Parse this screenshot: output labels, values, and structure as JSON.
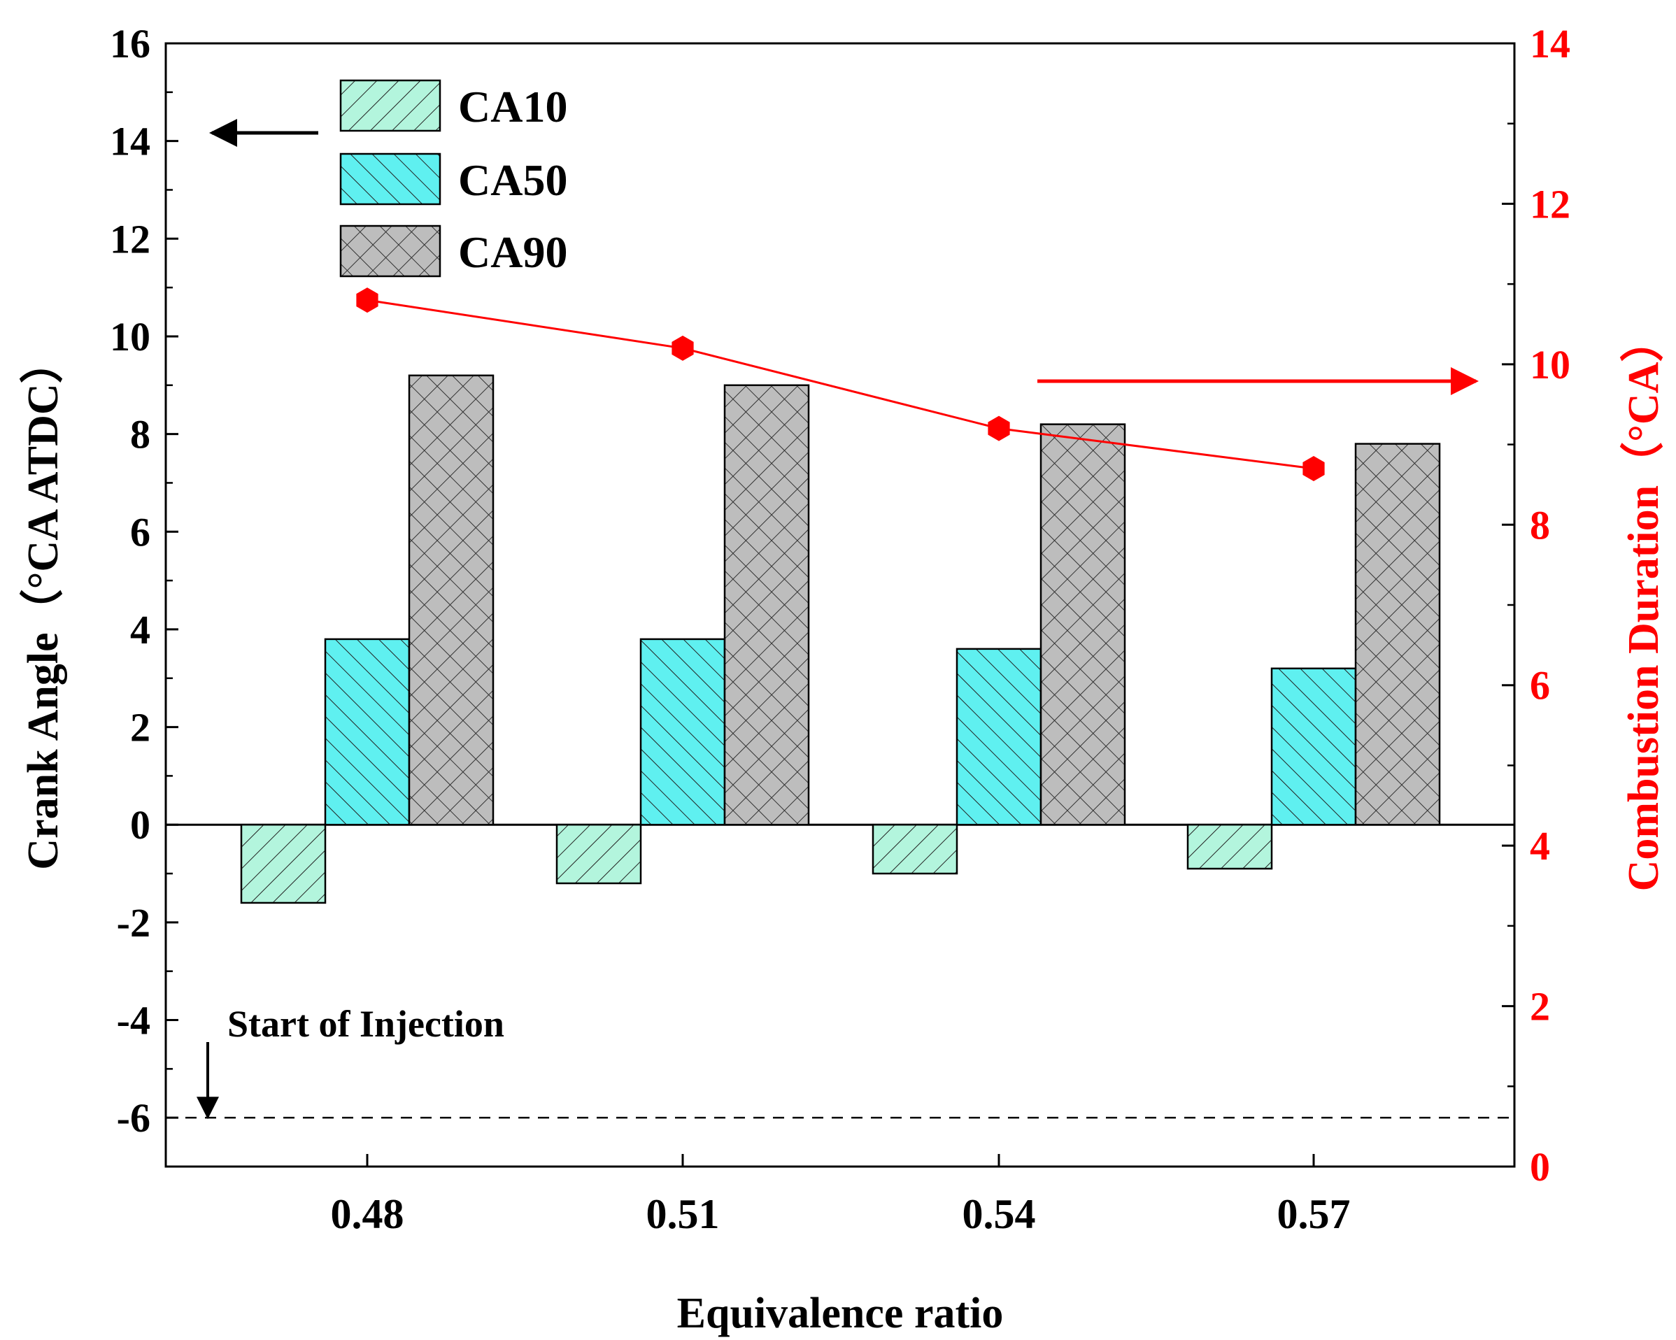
{
  "chart_data": {
    "type": "bar",
    "categories": [
      "0.48",
      "0.51",
      "0.54",
      "0.57"
    ],
    "series": [
      {
        "name": "CA10",
        "axis": "left",
        "values": [
          -1.6,
          -1.2,
          -1.0,
          -0.9
        ],
        "fill": "#b3f5dd",
        "hatch": "forward-diagonal"
      },
      {
        "name": "CA50",
        "axis": "left",
        "values": [
          3.8,
          3.8,
          3.6,
          3.2
        ],
        "fill": "#5ff0f0",
        "hatch": "back-diagonal"
      },
      {
        "name": "CA90",
        "axis": "left",
        "values": [
          9.2,
          9.0,
          8.2,
          7.8
        ],
        "fill": "#bdbdbd",
        "hatch": "crosshatch"
      }
    ],
    "line_series": {
      "name": "Combustion Duration",
      "axis": "right",
      "values": [
        10.8,
        10.2,
        9.2,
        8.7
      ],
      "color": "#ff0000",
      "marker": "hexagon"
    },
    "xlabel": "Equivalence ratio",
    "ylabel": "Crank Angle（°CA ATDC）",
    "y2label": "Combustion Duration（°CA）",
    "ylim": [
      -7,
      16
    ],
    "y_ticks": [
      "16",
      "14",
      "12",
      "10",
      "8",
      "6",
      "4",
      "2",
      "0",
      "-2",
      "-4",
      "-6"
    ],
    "y2lim": [
      0,
      14
    ],
    "y2_ticks": [
      "14",
      "12",
      "10",
      "8",
      "6",
      "4",
      "2",
      "0"
    ],
    "reference_line": {
      "value": -6,
      "style": "dashed",
      "label": "Start of Injection"
    },
    "legend": {
      "position": "top-left",
      "entries": [
        "CA10",
        "CA50",
        "CA90"
      ]
    },
    "annotations": [
      "arrow to left axis",
      "arrow to right axis"
    ],
    "colors": {
      "axis": "#000000",
      "right_axis": "#ff0000",
      "line": "#ff0000"
    }
  }
}
